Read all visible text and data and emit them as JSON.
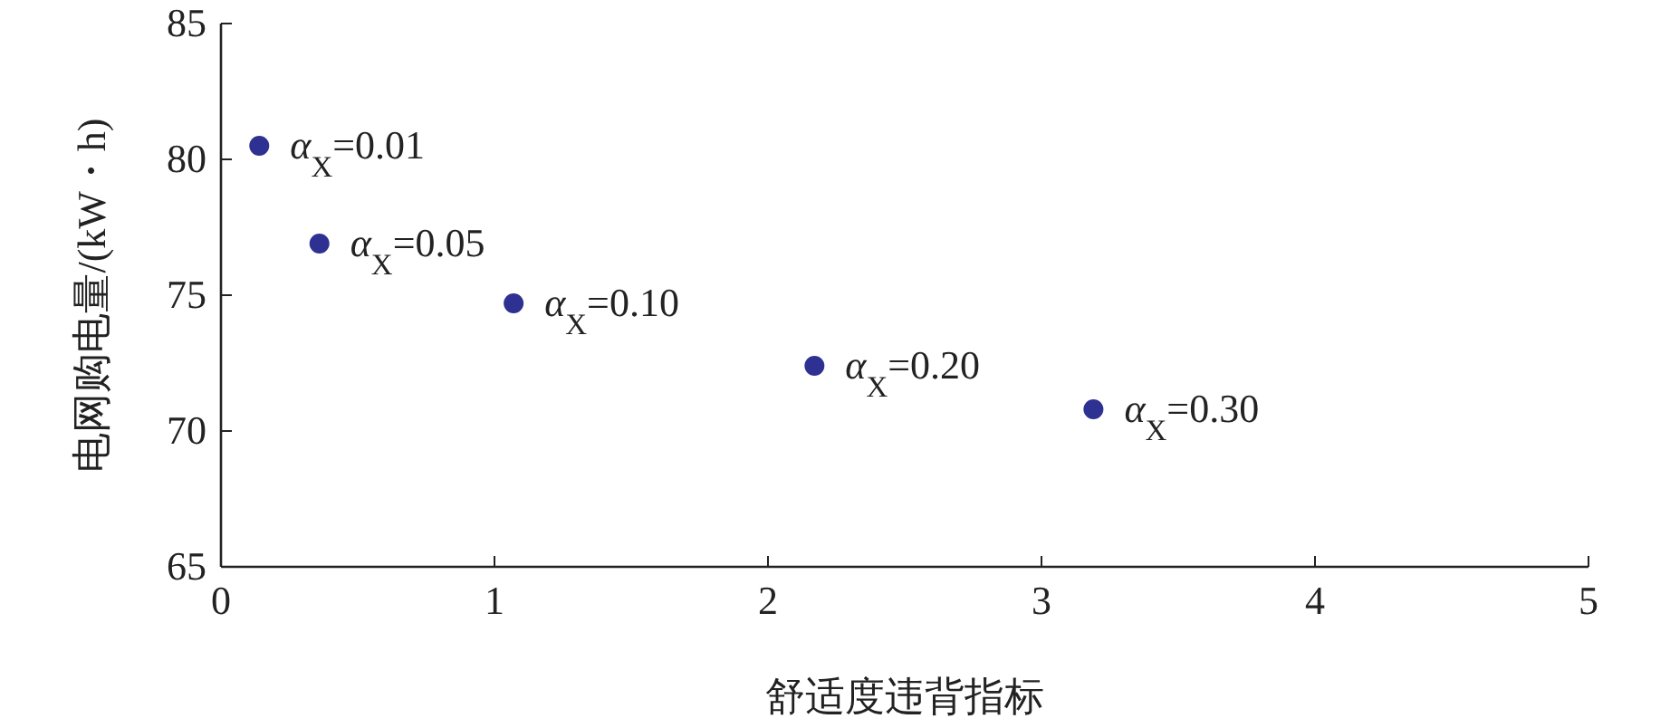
{
  "chart_data": {
    "type": "scatter",
    "xlabel": "舒适度违背指标",
    "ylabel": "电网购电量/(kW・h)",
    "x": [
      0.14,
      0.36,
      1.07,
      2.17,
      3.19
    ],
    "series": [
      {
        "color": "#2e3192",
        "values": [
          80.5,
          76.9,
          74.7,
          72.4,
          70.8
        ]
      }
    ],
    "marker": "circle",
    "xlim": [
      0,
      5
    ],
    "xticks": [
      0,
      1,
      2,
      3,
      4,
      5
    ],
    "ylim": [
      65,
      85
    ],
    "yticks": [
      65,
      70,
      75,
      80,
      85
    ],
    "grid": false,
    "annotations": [
      {
        "text": "α$_{X}$=0.01",
        "x": 0.14,
        "y": 80.5
      },
      {
        "text": "α$_{X}$=0.05",
        "x": 0.36,
        "y": 76.9
      },
      {
        "text": "α$_{X}$=0.10",
        "x": 1.07,
        "y": 74.7
      },
      {
        "text": "α$_{X}$=0.20",
        "x": 2.17,
        "y": 72.4
      },
      {
        "text": "α$_{X}$=0.30",
        "x": 3.19,
        "y": 70.8
      }
    ]
  }
}
